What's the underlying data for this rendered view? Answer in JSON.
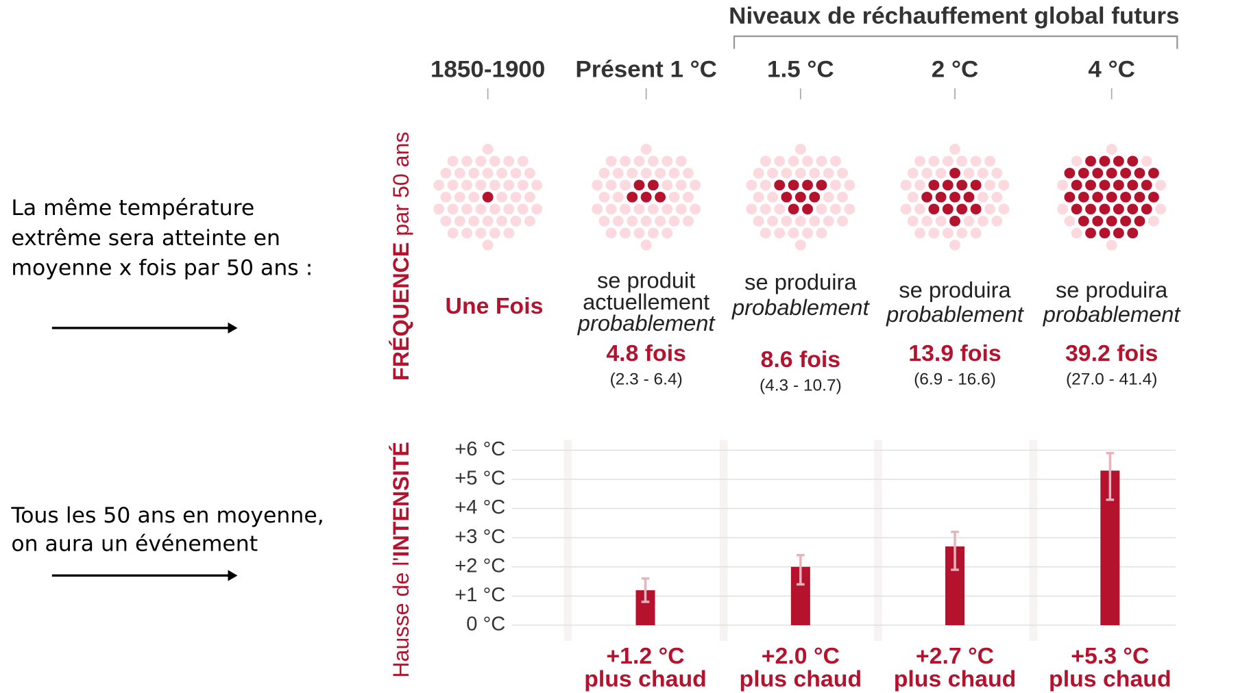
{
  "chart_data": {
    "type": "bar",
    "group_title": "Niveaux de réchauffement global futurs",
    "columns": [
      "1850-1900",
      "Présent 1 °C",
      "1.5 °C",
      "2 °C",
      "4 °C"
    ],
    "left_text_1": [
      "La même température",
      "extrême sera atteinte en",
      "moyenne x fois par 50 ans :"
    ],
    "left_text_2": [
      "Tous les 50 ans en moyenne,",
      "on aura un événement"
    ],
    "frequency": {
      "axis_label_strong": "FRÉQUENCE",
      "axis_label_rest": " par 50 ans",
      "values": [
        1,
        4.8,
        8.6,
        13.9,
        39.2
      ],
      "value_labels": [
        "Une Fois",
        "4.8 fois",
        "8.6 fois",
        "13.9 fois",
        "39.2 fois"
      ],
      "descriptions": [
        null,
        [
          "se produit",
          "actuellement"
        ],
        [
          "se produira"
        ],
        [
          "se produira"
        ],
        [
          "se produira"
        ]
      ],
      "description_italic": [
        null,
        "probablement",
        "probablement",
        "probablement",
        "probablement"
      ],
      "range_labels": [
        null,
        "(2.3 - 6.4)",
        "(4.3 - 10.7)",
        "(6.9 - 16.6)",
        "(27.0 - 41.4)"
      ],
      "dot_total": 50,
      "dot_counts": [
        1,
        5,
        9,
        14,
        39
      ],
      "dot_color": "#b5122e",
      "dot_empty_color": "#fbd9df"
    },
    "intensity": {
      "axis_label_rest": "Hausse de l'",
      "axis_label_strong": "INTENSITÉ",
      "categories": [
        "Présent 1 °C",
        "1.5 °C",
        "2 °C",
        "4 °C"
      ],
      "values": [
        1.2,
        2.0,
        2.7,
        5.3
      ],
      "value_labels": [
        "+1.2 °C",
        "+2.0 °C",
        "+2.7 °C",
        "+5.3 °C"
      ],
      "value_sublabel": "plus chaud",
      "error_ranges": [
        [
          0.8,
          1.6
        ],
        [
          1.4,
          2.4
        ],
        [
          1.9,
          3.2
        ],
        [
          4.3,
          5.9
        ]
      ],
      "color": "#b5122e",
      "error_color": "#e8b3bc",
      "ylim": [
        0,
        6
      ],
      "yticks": [
        {
          "value": 0,
          "label": "0 °C"
        },
        {
          "value": 1,
          "label": "+1 °C"
        },
        {
          "value": 2,
          "label": "+2 °C"
        },
        {
          "value": 3,
          "label": "+3 °C"
        },
        {
          "value": 4,
          "label": "+4 °C"
        },
        {
          "value": 5,
          "label": "+5 °C"
        },
        {
          "value": 6,
          "label": "+6 °C"
        }
      ],
      "grid": true
    }
  }
}
